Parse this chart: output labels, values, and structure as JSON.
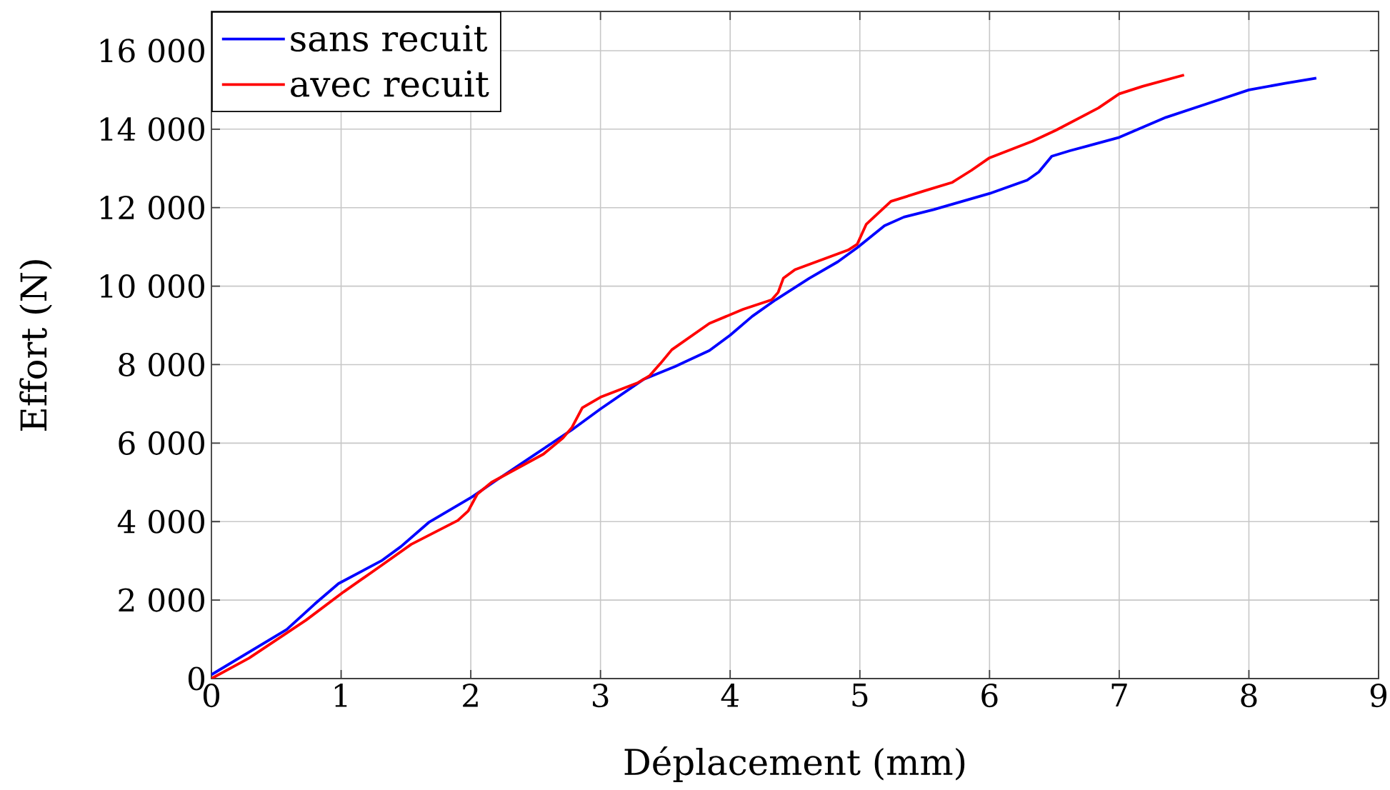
{
  "chart_data": {
    "type": "line",
    "xlabel": "Déplacement (mm)",
    "ylabel": "Effort (N)",
    "xlim": [
      0,
      9
    ],
    "ylim": [
      0,
      17000
    ],
    "xticks": [
      0,
      1,
      2,
      3,
      4,
      5,
      6,
      7,
      8,
      9
    ],
    "yticks": [
      0,
      {
        "value": 2000,
        "label": "2 000"
      },
      {
        "value": 4000,
        "label": "4 000"
      },
      {
        "value": 6000,
        "label": "6 000"
      },
      {
        "value": 8000,
        "label": "8 000"
      },
      {
        "value": 10000,
        "label": "10 000"
      },
      {
        "value": 12000,
        "label": "12 000"
      },
      {
        "value": 14000,
        "label": "14 000"
      },
      {
        "value": 16000,
        "label": "16 000"
      }
    ],
    "grid": true,
    "legend": "top left",
    "marker": "none",
    "line_style": "solid",
    "series": [
      {
        "name": "sans recuit",
        "color": "#0000ff",
        "x": [
          0,
          0.58,
          0.8,
          0.98,
          1.31,
          1.46,
          1.68,
          2.01,
          2.2,
          2.49,
          2.78,
          3.0,
          3.33,
          3.58,
          3.84,
          4.0,
          4.17,
          4.35,
          4.61,
          4.83,
          4.98,
          5.19,
          5.34,
          5.57,
          6.0,
          6.29,
          6.38,
          6.48,
          6.62,
          7.0,
          7.36,
          7.69,
          8.0,
          8.28,
          8.52
        ],
        "values": [
          100,
          1250,
          1910,
          2420,
          3000,
          3360,
          3990,
          4630,
          5060,
          5700,
          6340,
          6870,
          7620,
          7960,
          8360,
          8750,
          9230,
          9650,
          10200,
          10620,
          10980,
          11540,
          11760,
          11950,
          12360,
          12700,
          12910,
          13310,
          13450,
          13790,
          14300,
          14660,
          15000,
          15170,
          15300
        ]
      },
      {
        "name": "avec recuit",
        "color": "#ff0000",
        "x": [
          0,
          0.29,
          0.73,
          1.02,
          1.31,
          1.54,
          1.9,
          1.98,
          2.05,
          2.16,
          2.56,
          2.71,
          2.78,
          2.86,
          3.0,
          3.29,
          3.38,
          3.46,
          3.55,
          3.84,
          4.1,
          4.32,
          4.37,
          4.41,
          4.5,
          4.91,
          4.98,
          5.05,
          5.24,
          5.49,
          5.71,
          5.86,
          6.0,
          6.33,
          6.51,
          6.84,
          7.0,
          7.18,
          7.5
        ],
        "values": [
          0,
          520,
          1490,
          2210,
          2880,
          3420,
          4030,
          4270,
          4700,
          5000,
          5720,
          6130,
          6400,
          6900,
          7170,
          7540,
          7720,
          8020,
          8380,
          9050,
          9410,
          9650,
          9840,
          10200,
          10420,
          10920,
          11070,
          11580,
          12160,
          12420,
          12640,
          12950,
          13270,
          13690,
          13970,
          14540,
          14900,
          15090,
          15380
        ]
      }
    ]
  }
}
